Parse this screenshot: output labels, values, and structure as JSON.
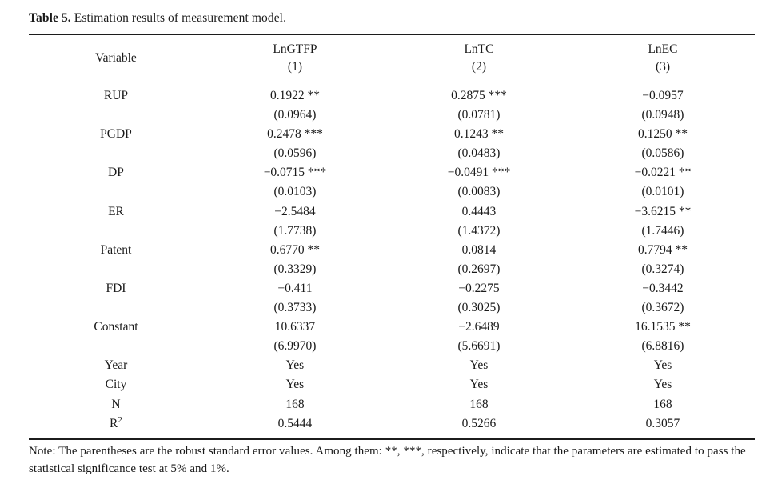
{
  "title": {
    "label": "Table 5.",
    "text": "Estimation results of measurement model."
  },
  "table": {
    "columns": [
      {
        "name": "Variable",
        "sub": ""
      },
      {
        "name": "LnGTFP",
        "sub": "(1)"
      },
      {
        "name": "LnTC",
        "sub": "(2)"
      },
      {
        "name": "LnEC",
        "sub": "(3)"
      }
    ],
    "rows": [
      {
        "variable": "RUP",
        "values": [
          "0.1922 **",
          "0.2875 ***",
          "−0.0957"
        ],
        "se": [
          "(0.0964)",
          "(0.0781)",
          "(0.0948)"
        ]
      },
      {
        "variable": "PGDP",
        "values": [
          "0.2478 ***",
          "0.1243 **",
          "0.1250 **"
        ],
        "se": [
          "(0.0596)",
          "(0.0483)",
          "(0.0586)"
        ]
      },
      {
        "variable": "DP",
        "values": [
          "−0.0715 ***",
          "−0.0491 ***",
          "−0.0221 **"
        ],
        "se": [
          "(0.0103)",
          "(0.0083)",
          "(0.0101)"
        ]
      },
      {
        "variable": "ER",
        "values": [
          "−2.5484",
          "0.4443",
          "−3.6215 **"
        ],
        "se": [
          "(1.7738)",
          "(1.4372)",
          "(1.7446)"
        ]
      },
      {
        "variable": "Patent",
        "values": [
          "0.6770 **",
          "0.0814",
          "0.7794 **"
        ],
        "se": [
          "(0.3329)",
          "(0.2697)",
          "(0.3274)"
        ]
      },
      {
        "variable": "FDI",
        "values": [
          "−0.411",
          "−0.2275",
          "−0.3442"
        ],
        "se": [
          "(0.3733)",
          "(0.3025)",
          "(0.3672)"
        ]
      },
      {
        "variable": "Constant",
        "values": [
          "10.6337",
          "−2.6489",
          "16.1535 **"
        ],
        "se": [
          "(6.9970)",
          "(5.6691)",
          "(6.8816)"
        ]
      },
      {
        "variable": "Year",
        "values": [
          "Yes",
          "Yes",
          "Yes"
        ]
      },
      {
        "variable": "City",
        "values": [
          "Yes",
          "Yes",
          "Yes"
        ]
      },
      {
        "variable": "N",
        "values": [
          "168",
          "168",
          "168"
        ]
      },
      {
        "variable": "R",
        "variable_sup": "2",
        "values": [
          "0.5444",
          "0.5266",
          "0.3057"
        ]
      }
    ]
  },
  "note": {
    "label": "Note:",
    "text": "The parentheses are the robust standard error values. Among them: **, ***, respectively, indicate that the parameters are estimated to pass the statistical significance test at 5% and 1%."
  }
}
